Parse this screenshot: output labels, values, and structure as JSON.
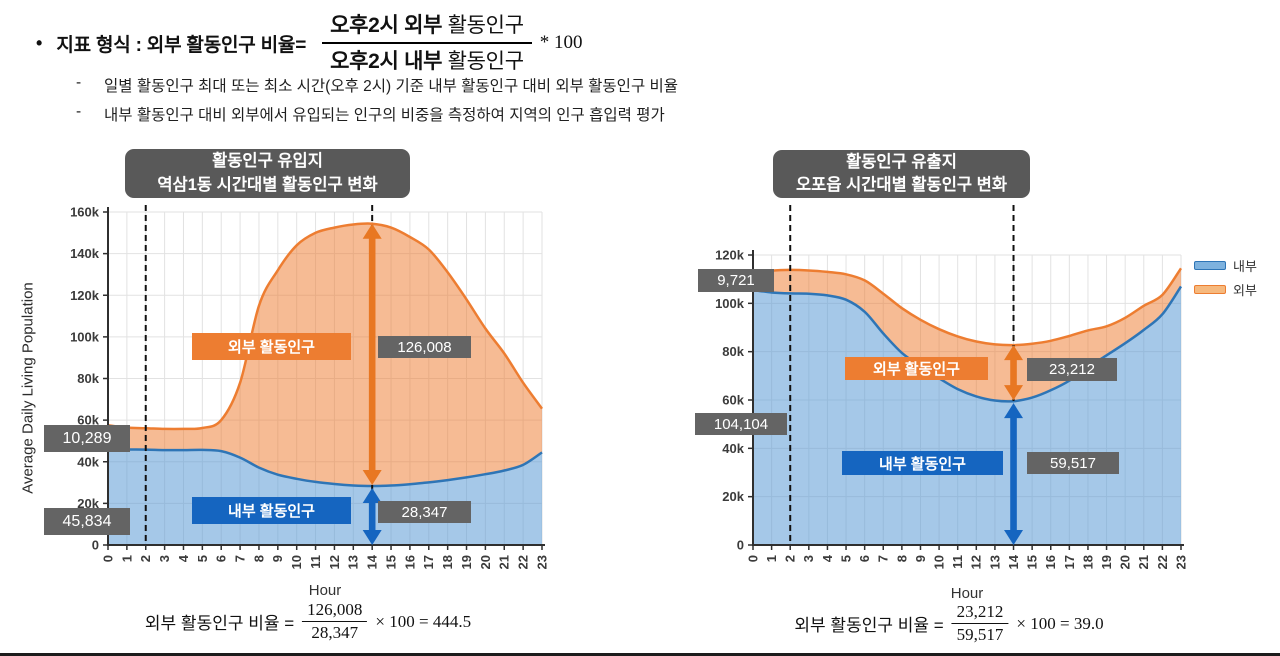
{
  "header": {
    "bullet": "•",
    "label": "지표 형식 : 외부 활동인구 비율=",
    "fraction": {
      "numerator_bold": "오후2시 외부",
      "numerator_rest": " 활동인구",
      "denominator_bold": "오후2시 내부",
      "denominator_rest": " 활동인구",
      "multiplier": "* 100"
    },
    "note_dash": "-",
    "notes": [
      "일별 활동인구 최대 또는 최소 시간(오후 2시) 기준 내부 활동인구 대비 외부 활동인구 비율",
      "내부 활동인구 대비 외부에서 유입되는 인구의 비중을 측정하여 지역의 인구 흡입력 평가"
    ]
  },
  "y_axis_label": "Average Daily Living Population",
  "colors": {
    "orange_line": "#ED7D31",
    "orange_arrow": "#E87722",
    "orange_fill_base": "#ED7D31",
    "blue_line": "#2E75B6",
    "blue_fill_base": "#5B9BD5",
    "blue_label": "#1565C0",
    "gray_box": "#646464",
    "title_box": "#595959",
    "grid": "#E2E2E2",
    "axis": "#2F2F2F",
    "dash": "#111111"
  },
  "chart_data": [
    {
      "id": "inflow",
      "type": "area",
      "stacked": true,
      "title_line1": "활동인구 유입지",
      "title_line2": "역삼1동 시간대별 활동인구 변화",
      "xlabel": "Hour",
      "x": [
        0,
        1,
        2,
        3,
        4,
        5,
        6,
        7,
        8,
        9,
        10,
        11,
        12,
        13,
        14,
        15,
        16,
        17,
        18,
        19,
        20,
        21,
        22,
        23
      ],
      "series": [
        {
          "name": "내부",
          "values": [
            46200,
            45900,
            45834,
            45600,
            45600,
            45700,
            45100,
            42000,
            37200,
            33800,
            31800,
            30300,
            29300,
            28600,
            28347,
            28600,
            29200,
            30100,
            31200,
            32500,
            34000,
            35800,
            38500,
            44500
          ]
        },
        {
          "name": "외부",
          "values": [
            11300,
            10500,
            10289,
            10200,
            10200,
            10500,
            14900,
            36000,
            77800,
            98200,
            112200,
            119700,
            123200,
            125400,
            126008,
            123900,
            118800,
            111900,
            99800,
            85500,
            70000,
            56200,
            39500,
            21000
          ]
        }
      ],
      "ylim": [
        0,
        160000
      ],
      "yticks": [
        "0",
        "20k",
        "40k",
        "60k",
        "80k",
        "100k",
        "120k",
        "140k",
        "160k"
      ],
      "marked_hours": [
        2,
        14
      ],
      "grid": true,
      "callouts": {
        "external_series_label": "외부 활동인구",
        "internal_series_label": "내부 활동인구",
        "external_at_hour2": "10,289",
        "internal_at_hour2": "45,834",
        "external_at_hour14": "126,008",
        "internal_at_hour14": "28,347"
      }
    },
    {
      "id": "outflow",
      "type": "area",
      "stacked": true,
      "title_line1": "활동인구 유출지",
      "title_line2": "오포읍 시간대별 활동인구 변화",
      "xlabel": "Hour",
      "x": [
        0,
        1,
        2,
        3,
        4,
        5,
        6,
        7,
        8,
        9,
        10,
        11,
        12,
        13,
        14,
        15,
        16,
        17,
        18,
        19,
        20,
        21,
        22,
        23
      ],
      "series": [
        {
          "name": "내부",
          "values": [
            105500,
            104500,
            104104,
            104000,
            103300,
            101500,
            96500,
            87500,
            79500,
            74000,
            69000,
            64500,
            61500,
            59800,
            59517,
            61000,
            64000,
            68000,
            73500,
            78500,
            83500,
            89000,
            95500,
            107000
          ]
        },
        {
          "name": "외부",
          "values": [
            7000,
            9000,
            9721,
            9600,
            9700,
            10500,
            13000,
            16500,
            18500,
            19200,
            20300,
            21800,
            22700,
            23200,
            23212,
            22300,
            20500,
            18500,
            15300,
            12000,
            10500,
            10000,
            8000,
            7500
          ]
        }
      ],
      "ylim": [
        0,
        120000
      ],
      "yticks": [
        "0",
        "20k",
        "40k",
        "60k",
        "80k",
        "100k",
        "120k"
      ],
      "marked_hours": [
        2,
        14
      ],
      "grid": true,
      "legend": [
        "내부",
        "외부"
      ],
      "legend_position": "right",
      "callouts": {
        "external_series_label": "외부 활동인구",
        "internal_series_label": "내부 활동인구",
        "external_at_hour2": "9,721",
        "internal_at_hour2": "104,104",
        "external_at_hour14": "23,212",
        "internal_at_hour14": "59,517"
      }
    }
  ],
  "bottom_formulas": [
    {
      "lhs": "외부 활동인구 비율 =",
      "numerator": "126,008",
      "denominator": "28,347",
      "rhs": "× 100 = 444.5"
    },
    {
      "lhs": "외부 활동인구 비율 =",
      "numerator": "23,212",
      "denominator": "59,517",
      "rhs": "× 100 = 39.0"
    }
  ]
}
